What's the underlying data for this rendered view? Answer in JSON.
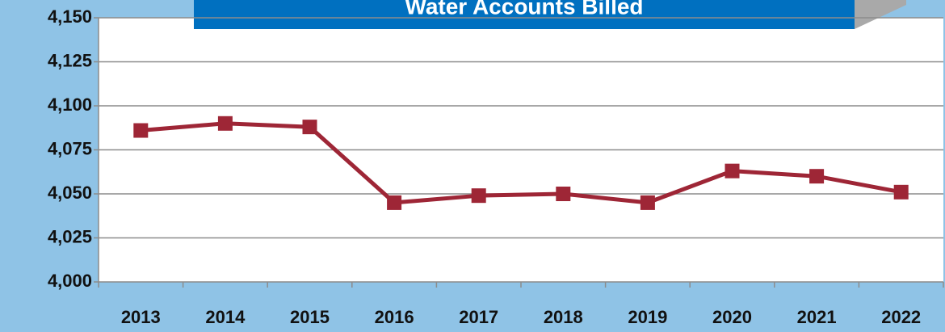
{
  "chart_data": {
    "type": "line",
    "title": "Water Accounts Billed",
    "categories": [
      "2013",
      "2014",
      "2015",
      "2016",
      "2017",
      "2018",
      "2019",
      "2020",
      "2021",
      "2022"
    ],
    "series": [
      {
        "name": "Water Accounts Billed",
        "color": "#9e2636",
        "values": [
          4086,
          4090,
          4088,
          4045,
          4049,
          4050,
          4045,
          4063,
          4060,
          4051
        ]
      }
    ],
    "ylim": [
      4000,
      4150
    ],
    "yticks": [
      {
        "value": 4000,
        "label": "4,000"
      },
      {
        "value": 4025,
        "label": "4,025"
      },
      {
        "value": 4050,
        "label": "4,050"
      },
      {
        "value": 4075,
        "label": "4,075"
      },
      {
        "value": 4100,
        "label": "4,100"
      },
      {
        "value": 4125,
        "label": "4,125"
      },
      {
        "value": 4150,
        "label": "4,150"
      }
    ],
    "grid": true
  }
}
